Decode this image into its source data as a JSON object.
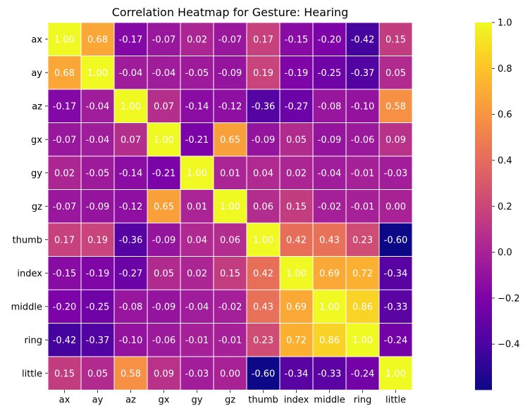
{
  "chart_data": {
    "type": "heatmap",
    "title": "Correlation Heatmap for Gesture: Hearing",
    "xlabel": "",
    "ylabel": "",
    "x_categories": [
      "ax",
      "ay",
      "az",
      "gx",
      "gy",
      "gz",
      "thumb",
      "index",
      "middle",
      "ring",
      "little"
    ],
    "y_categories": [
      "ax",
      "ay",
      "az",
      "gx",
      "gy",
      "gz",
      "thumb",
      "index",
      "middle",
      "ring",
      "little"
    ],
    "values": [
      [
        1.0,
        0.68,
        -0.17,
        -0.07,
        0.02,
        -0.07,
        0.17,
        -0.15,
        -0.2,
        -0.42,
        0.15
      ],
      [
        0.68,
        1.0,
        -0.04,
        -0.04,
        -0.05,
        -0.09,
        0.19,
        -0.19,
        -0.25,
        -0.37,
        0.05
      ],
      [
        -0.17,
        -0.04,
        1.0,
        0.07,
        -0.14,
        -0.12,
        -0.36,
        -0.27,
        -0.08,
        -0.1,
        0.58
      ],
      [
        -0.07,
        -0.04,
        0.07,
        1.0,
        -0.21,
        0.65,
        -0.09,
        0.05,
        -0.09,
        -0.06,
        0.09
      ],
      [
        0.02,
        -0.05,
        -0.14,
        -0.21,
        1.0,
        0.01,
        0.04,
        0.02,
        -0.04,
        -0.01,
        -0.03
      ],
      [
        -0.07,
        -0.09,
        -0.12,
        0.65,
        0.01,
        1.0,
        0.06,
        0.15,
        -0.02,
        -0.01,
        0.0
      ],
      [
        0.17,
        0.19,
        -0.36,
        -0.09,
        0.04,
        0.06,
        1.0,
        0.42,
        0.43,
        0.23,
        -0.6
      ],
      [
        -0.15,
        -0.19,
        -0.27,
        0.05,
        0.02,
        0.15,
        0.42,
        1.0,
        0.69,
        0.72,
        -0.34
      ],
      [
        -0.2,
        -0.25,
        -0.08,
        -0.09,
        -0.04,
        -0.02,
        0.43,
        0.69,
        1.0,
        0.86,
        -0.33
      ],
      [
        -0.42,
        -0.37,
        -0.1,
        -0.06,
        -0.01,
        -0.01,
        0.23,
        0.72,
        0.86,
        1.0,
        -0.24
      ],
      [
        0.15,
        0.05,
        0.58,
        0.09,
        -0.03,
        0.0,
        -0.6,
        -0.34,
        -0.33,
        -0.24,
        1.0
      ]
    ],
    "value_format": "0.00",
    "colormap": "plasma",
    "value_range": [
      -0.6,
      1.0
    ],
    "colorbar_ticks": [
      "1.0",
      "0.8",
      "0.6",
      "0.4",
      "0.2",
      "0.0",
      "−0.2",
      "−0.4"
    ],
    "colorbar_tick_values": [
      1.0,
      0.8,
      0.6,
      0.4,
      0.2,
      0.0,
      -0.2,
      -0.4
    ],
    "cell_border_color": "#ffffff",
    "annotation_color": "#ffffff",
    "grid": false,
    "legend": "colorbar-right"
  }
}
